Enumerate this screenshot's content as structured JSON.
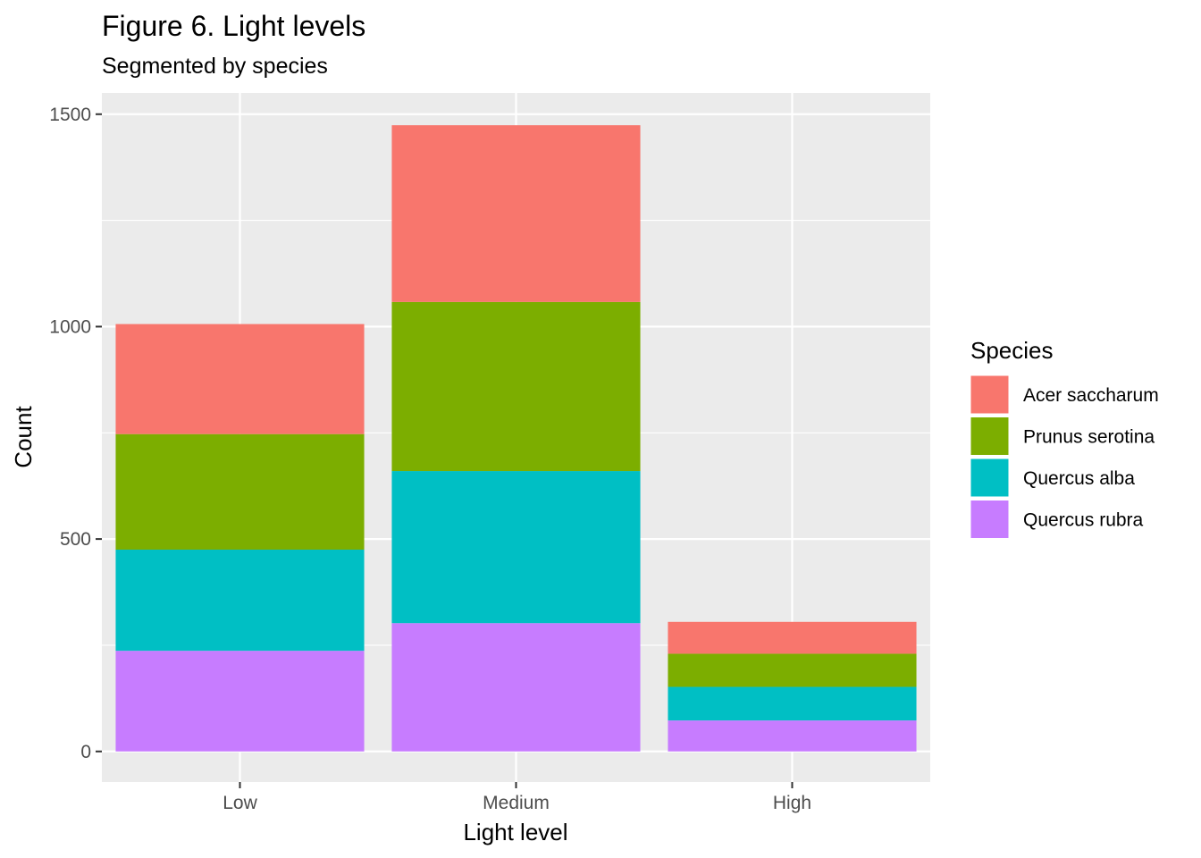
{
  "chart_data": {
    "type": "bar",
    "stacked": true,
    "title": "Figure 6. Light levels",
    "subtitle": "Segmented by species",
    "xlabel": "Light level",
    "ylabel": "Count",
    "categories": [
      "Low",
      "Medium",
      "High"
    ],
    "ylim": [
      -72,
      1550
    ],
    "yticks": [
      0,
      500,
      1000,
      1500
    ],
    "grid": true,
    "legend": {
      "title": "Species",
      "position": "right"
    },
    "series": [
      {
        "name": "Quercus rubra",
        "color": "#C77CFF",
        "values": [
          237,
          302,
          73
        ]
      },
      {
        "name": "Quercus alba",
        "color": "#00BFC4",
        "values": [
          238,
          358,
          79
        ]
      },
      {
        "name": "Prunus serotina",
        "color": "#7CAE00",
        "values": [
          272,
          398,
          78
        ]
      },
      {
        "name": "Acer saccharum",
        "color": "#F8766D",
        "values": [
          259,
          416,
          75
        ]
      }
    ],
    "legend_order": [
      "Acer saccharum",
      "Prunus serotina",
      "Quercus alba",
      "Quercus rubra"
    ]
  }
}
